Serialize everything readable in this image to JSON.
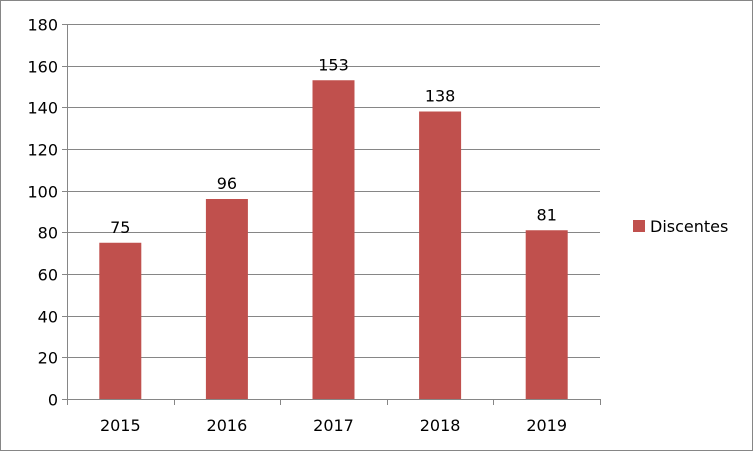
{
  "chart_data": {
    "type": "bar",
    "categories": [
      "2015",
      "2016",
      "2017",
      "2018",
      "2019"
    ],
    "series": [
      {
        "name": "Discentes",
        "values": [
          75,
          96,
          153,
          138,
          81
        ],
        "color": "#C0504D"
      }
    ],
    "data_labels": [
      "75",
      "96",
      "153",
      "138",
      "81"
    ],
    "ylim": [
      0,
      180
    ],
    "yticks": [
      0,
      20,
      40,
      60,
      80,
      100,
      120,
      140,
      160,
      180
    ],
    "grid": true,
    "legend": "right",
    "colors": {
      "bar": "#C0504D",
      "grid": "#868686",
      "axis": "#868686"
    }
  }
}
